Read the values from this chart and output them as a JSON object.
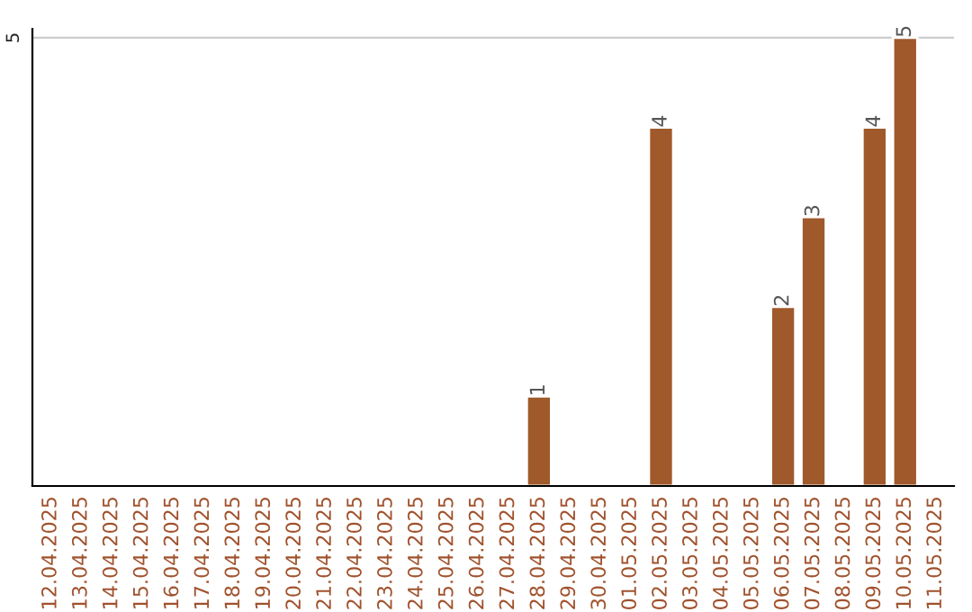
{
  "chart_data": {
    "type": "bar",
    "categories": [
      "12.04.2025",
      "13.04.2025",
      "14.04.2025",
      "15.04.2025",
      "16.04.2025",
      "17.04.2025",
      "18.04.2025",
      "19.04.2025",
      "20.04.2025",
      "21.04.2025",
      "22.04.2025",
      "23.04.2025",
      "24.04.2025",
      "25.04.2025",
      "26.04.2025",
      "27.04.2025",
      "28.04.2025",
      "29.04.2025",
      "30.04.2025",
      "01.05.2025",
      "02.05.2025",
      "03.05.2025",
      "04.05.2025",
      "05.05.2025",
      "06.05.2025",
      "07.05.2025",
      "08.05.2025",
      "09.05.2025",
      "10.05.2025",
      "11.05.2025"
    ],
    "values": [
      null,
      null,
      null,
      null,
      null,
      null,
      null,
      null,
      null,
      null,
      null,
      null,
      null,
      null,
      null,
      null,
      1,
      null,
      null,
      null,
      4,
      null,
      null,
      null,
      2,
      3,
      null,
      4,
      5,
      null
    ],
    "color": "#a0592b",
    "ylim": [
      0,
      5.1
    ],
    "yticks": [
      5
    ],
    "grid": "y",
    "data_labels": true
  }
}
